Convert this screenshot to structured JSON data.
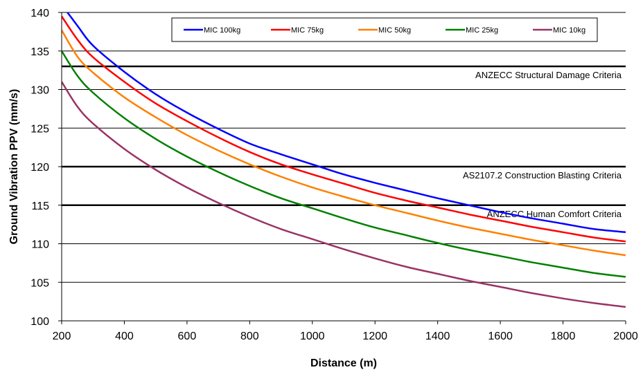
{
  "chart_data": {
    "type": "line",
    "xlabel": "Distance (m)",
    "ylabel": "Ground Vibration PPV (mm/s)",
    "xlim": [
      200,
      2000
    ],
    "ylim": [
      100,
      140
    ],
    "x_ticks": [
      200,
      400,
      600,
      800,
      1000,
      1200,
      1400,
      1600,
      1800,
      2000
    ],
    "y_ticks": [
      100,
      105,
      110,
      115,
      120,
      125,
      130,
      135,
      140
    ],
    "grid": "horizontal",
    "legend_position": "top",
    "x": [
      200,
      250,
      300,
      400,
      500,
      600,
      700,
      800,
      900,
      1000,
      1100,
      1200,
      1300,
      1400,
      1500,
      1600,
      1700,
      1800,
      1900,
      2000
    ],
    "series": [
      {
        "name": "MIC 100kg",
        "color": "#0000ff",
        "values": [
          141.0,
          138.3,
          135.7,
          132.3,
          129.4,
          127.0,
          124.9,
          123.0,
          121.6,
          120.3,
          119.0,
          117.9,
          116.9,
          115.9,
          115.0,
          114.1,
          113.3,
          112.6,
          111.9,
          111.5
        ]
      },
      {
        "name": "MIC 75kg",
        "color": "#ff0000",
        "values": [
          139.5,
          136.5,
          134.2,
          131.0,
          128.2,
          125.9,
          123.8,
          121.9,
          120.3,
          119.0,
          117.8,
          116.6,
          115.6,
          114.7,
          113.8,
          113.0,
          112.2,
          111.5,
          110.8,
          110.3
        ]
      },
      {
        "name": "MIC 50kg",
        "color": "#ff8000",
        "values": [
          137.7,
          134.3,
          132.2,
          129.0,
          126.4,
          124.1,
          122.1,
          120.3,
          118.7,
          117.3,
          116.1,
          115.0,
          114.0,
          113.0,
          112.1,
          111.3,
          110.5,
          109.8,
          109.1,
          108.5
        ]
      },
      {
        "name": "MIC 25kg",
        "color": "#008000",
        "values": [
          135.0,
          131.8,
          129.6,
          126.3,
          123.6,
          121.3,
          119.3,
          117.5,
          115.9,
          114.6,
          113.3,
          112.1,
          111.1,
          110.1,
          109.2,
          108.4,
          107.6,
          106.9,
          106.2,
          105.7
        ]
      },
      {
        "name": "MIC 10kg",
        "color": "#993366",
        "values": [
          131.0,
          127.8,
          125.6,
          122.3,
          119.6,
          117.3,
          115.3,
          113.5,
          111.9,
          110.6,
          109.3,
          108.1,
          107.0,
          106.1,
          105.2,
          104.4,
          103.6,
          102.9,
          102.3,
          101.8
        ]
      }
    ],
    "reference_lines": [
      {
        "y": 133,
        "label": "ANZECC Structural Damage Criteria"
      },
      {
        "y": 120,
        "label": "AS2107.2  Construction Blasting Criteria"
      },
      {
        "y": 115,
        "label": "ANZECC Human Comfort Criteria"
      }
    ]
  }
}
